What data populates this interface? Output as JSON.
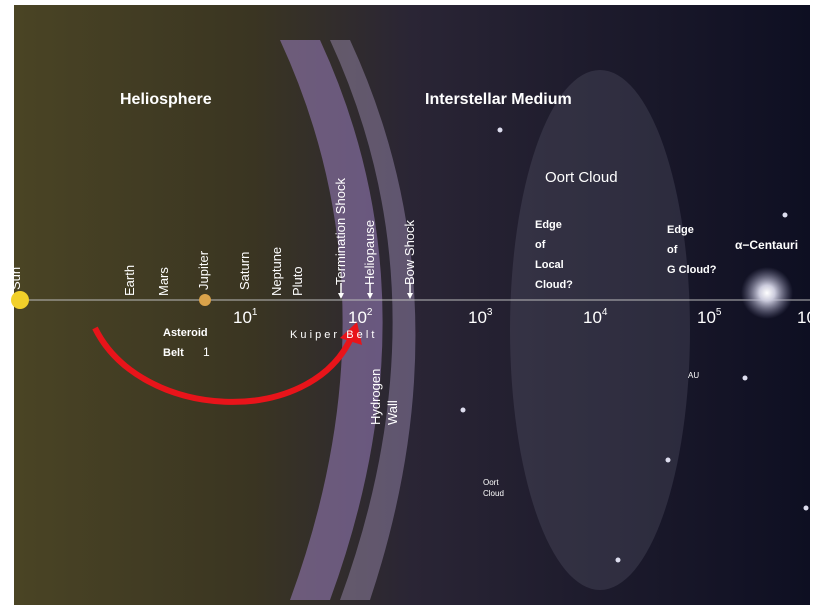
{
  "headings": {
    "heliosphere": "Heliosphere",
    "interstellar": "Interstellar Medium"
  },
  "bodies": [
    "Sun",
    "Earth",
    "Mars",
    "Jupiter",
    "Saturn",
    "Neptune",
    "Pluto"
  ],
  "boundaries": [
    "Termination Shock",
    "Heliopause",
    "Bow Shock"
  ],
  "regions": {
    "oort_cloud": "Oort Cloud",
    "asteroid_belt": [
      "Asteroid",
      "Belt"
    ],
    "kuiper_belt": "K u i p e r   B e l t",
    "hydrogen_wall": [
      "Hydrogen",
      "Wall"
    ],
    "oort_cloud_small": [
      "Oort",
      "Cloud"
    ]
  },
  "edges": {
    "local": [
      "Edge",
      "of",
      "Local",
      "Cloud?"
    ],
    "g": [
      "Edge",
      "of",
      "G Cloud?"
    ]
  },
  "star": "α−Centauri",
  "scale": {
    "unit": "AU",
    "one": "1",
    "ticks": [
      {
        "base": "10",
        "exp": "1"
      },
      {
        "base": "10",
        "exp": "2"
      },
      {
        "base": "10",
        "exp": "3"
      },
      {
        "base": "10",
        "exp": "4"
      },
      {
        "base": "10",
        "exp": "5"
      },
      {
        "base": "10",
        "exp": ""
      }
    ]
  }
}
